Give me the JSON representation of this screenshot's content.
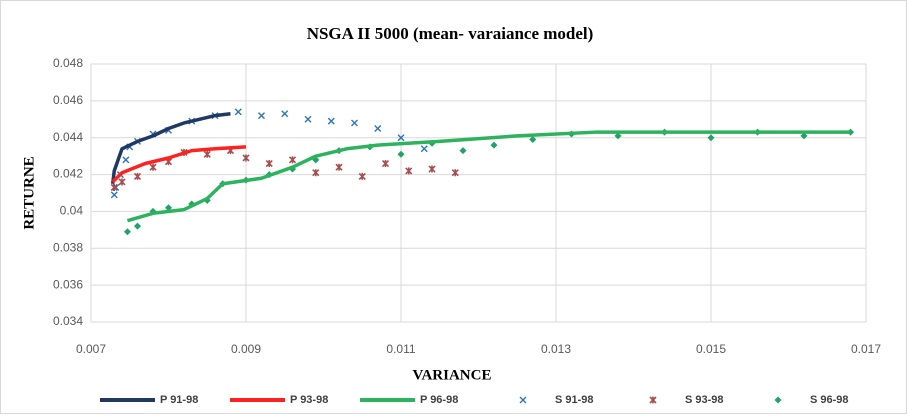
{
  "chart_data": {
    "type": "scatter",
    "title": "NSGA II 5000 (mean- varaiance model)",
    "x_label": "VARIANCE",
    "y_label": "RETURNE",
    "xlim": [
      0.007,
      0.017
    ],
    "xticks": [
      0.007,
      0.009,
      0.011,
      0.013,
      0.015,
      0.017
    ],
    "ylim": [
      0.034,
      0.048
    ],
    "yticks": [
      0.034,
      0.036,
      0.038,
      0.04,
      0.042,
      0.044,
      0.046,
      0.048
    ],
    "grid": true,
    "legend": "bottom",
    "series": [
      {
        "name": "P 91-98",
        "color": "#1f3864",
        "mode": "line",
        "x": [
          0.00728,
          0.0073,
          0.00735,
          0.0074,
          0.0076,
          0.0078,
          0.008,
          0.0082,
          0.0084,
          0.0086,
          0.0088
        ],
        "values": [
          0.0415,
          0.0422,
          0.0428,
          0.0434,
          0.0438,
          0.0441,
          0.0445,
          0.0448,
          0.045,
          0.0452,
          0.0453
        ]
      },
      {
        "name": "P 93-98",
        "color": "#ff2020",
        "mode": "line",
        "x": [
          0.00728,
          0.0074,
          0.0077,
          0.008,
          0.0083,
          0.0086,
          0.009
        ],
        "values": [
          0.0416,
          0.0421,
          0.0426,
          0.0429,
          0.0433,
          0.0434,
          0.0435
        ]
      },
      {
        "name": "P 96-98",
        "color": "#2db35d",
        "mode": "line",
        "x": [
          0.00747,
          0.0078,
          0.0082,
          0.0085,
          0.0087,
          0.0092,
          0.0096,
          0.0099,
          0.0103,
          0.0107,
          0.0115,
          0.0125,
          0.0135,
          0.015,
          0.0168
        ],
        "values": [
          0.0395,
          0.0399,
          0.0401,
          0.0407,
          0.0415,
          0.0418,
          0.0424,
          0.043,
          0.0434,
          0.0436,
          0.0438,
          0.0441,
          0.0443,
          0.0443,
          0.0443
        ]
      },
      {
        "name": "S 91-98",
        "color": "#2e75b6",
        "mode": "x",
        "x": [
          0.0073,
          0.00732,
          0.00738,
          0.00745,
          0.0075,
          0.0076,
          0.0078,
          0.008,
          0.0083,
          0.0086,
          0.0089,
          0.0092,
          0.0095,
          0.0098,
          0.0101,
          0.0104,
          0.0107,
          0.011,
          0.0113
        ],
        "values": [
          0.0409,
          0.0413,
          0.042,
          0.0428,
          0.0435,
          0.0438,
          0.0442,
          0.0444,
          0.0449,
          0.0452,
          0.0454,
          0.0452,
          0.0453,
          0.045,
          0.0449,
          0.0448,
          0.0445,
          0.044,
          0.0434
        ]
      },
      {
        "name": "S 93-98",
        "color": "#a64d4d",
        "mode": "star",
        "x": [
          0.0073,
          0.0074,
          0.0076,
          0.0078,
          0.008,
          0.0082,
          0.0085,
          0.0088,
          0.009,
          0.0093,
          0.0096,
          0.0099,
          0.0102,
          0.0105,
          0.0108,
          0.0111,
          0.0114,
          0.0117
        ],
        "values": [
          0.0413,
          0.0416,
          0.0419,
          0.0424,
          0.0427,
          0.0432,
          0.0431,
          0.0433,
          0.0429,
          0.0426,
          0.0428,
          0.0421,
          0.0424,
          0.0419,
          0.0426,
          0.0422,
          0.0423,
          0.0421
        ]
      },
      {
        "name": "S 96-98",
        "color": "#21a366",
        "mode": "diamond",
        "x": [
          0.00747,
          0.0076,
          0.0078,
          0.008,
          0.0083,
          0.0085,
          0.0087,
          0.009,
          0.0093,
          0.0096,
          0.0099,
          0.0102,
          0.0106,
          0.011,
          0.0114,
          0.0118,
          0.0122,
          0.0127,
          0.0132,
          0.0138,
          0.0144,
          0.015,
          0.0156,
          0.0162,
          0.0168
        ],
        "values": [
          0.0389,
          0.0392,
          0.04,
          0.0402,
          0.0404,
          0.0406,
          0.0415,
          0.0417,
          0.042,
          0.0423,
          0.0428,
          0.0433,
          0.0435,
          0.0431,
          0.0437,
          0.0433,
          0.0436,
          0.0439,
          0.0442,
          0.0441,
          0.0443,
          0.044,
          0.0443,
          0.0441,
          0.0443
        ]
      }
    ]
  }
}
